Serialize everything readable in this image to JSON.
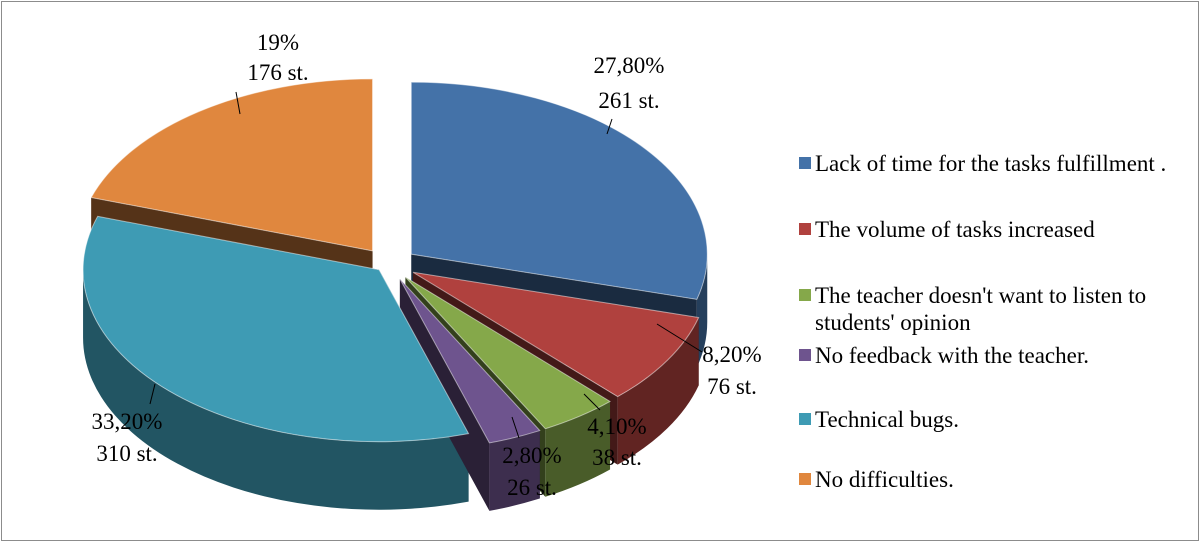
{
  "chart_data": {
    "type": "pie",
    "title": "",
    "slices": [
      {
        "label": "Lack of time for the tasks fulfillment .",
        "percent": 27.8,
        "count": 261,
        "value_label": "27,80%",
        "count_label": "261 st.",
        "color": "#4472A8"
      },
      {
        "label": "The volume of tasks increased",
        "percent": 8.2,
        "count": 76,
        "value_label": "8,20%",
        "count_label": "76 st.",
        "color": "#B0413E"
      },
      {
        "label": "The teacher doesn't want to listen to  students' opinion",
        "percent": 4.1,
        "count": 38,
        "value_label": "4,10%",
        "count_label": "38 st.",
        "color": "#85A84A"
      },
      {
        "label": "No  feedback with the teacher.",
        "percent": 2.8,
        "count": 26,
        "value_label": "2,80%",
        "count_label": "26 st.",
        "color": "#6E548E"
      },
      {
        "label": "Technical bugs.",
        "percent": 33.2,
        "count": 310,
        "value_label": "33,20%",
        "count_label": "310 st.",
        "color": "#3E9BB4"
      },
      {
        "label": "No difficulties.",
        "percent": 19,
        "count": 176,
        "value_label": "19%",
        "count_label": "176 st.",
        "color": "#E0873E"
      }
    ],
    "legend_position": "right",
    "style": "3d-exploded"
  }
}
